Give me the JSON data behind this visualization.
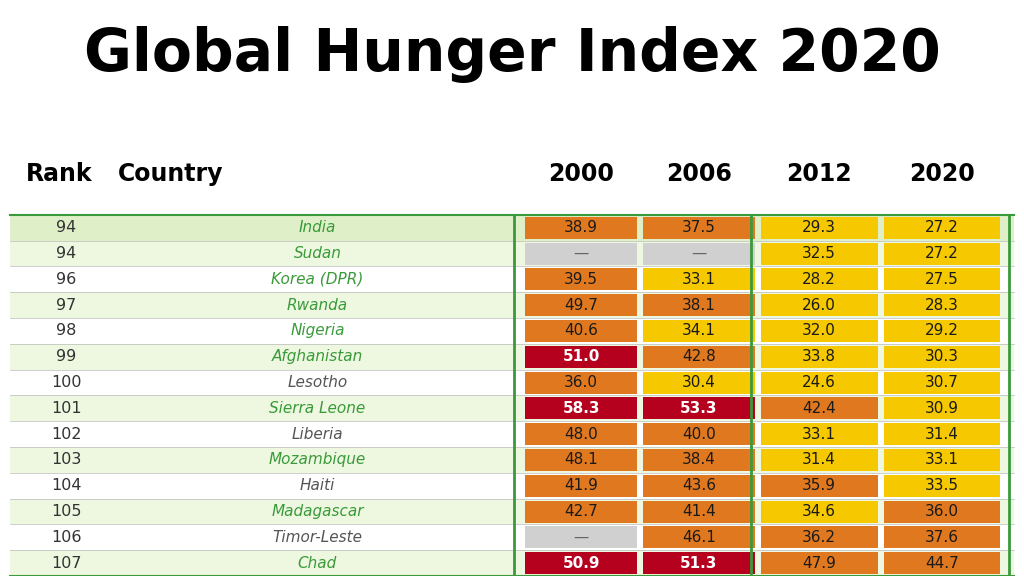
{
  "title": "Global Hunger Index 2020",
  "title_bg_color": "#1e9e1e",
  "title_text_color": "#000000",
  "columns": [
    "Rank",
    "Country",
    "2000",
    "2006",
    "2012",
    "2020"
  ],
  "rows": [
    {
      "rank": "94",
      "country": "India",
      "c2000": 38.9,
      "c2006": 37.5,
      "c2012": 29.3,
      "c2020": 27.2,
      "bg": "#dff0c8",
      "country_color": "#3a9a3a"
    },
    {
      "rank": "94",
      "country": "Sudan",
      "c2000": null,
      "c2006": null,
      "c2012": 32.5,
      "c2020": 27.2,
      "bg": "#eef8e0",
      "country_color": "#3a9a3a"
    },
    {
      "rank": "96",
      "country": "Korea (DPR)",
      "c2000": 39.5,
      "c2006": 33.1,
      "c2012": 28.2,
      "c2020": 27.5,
      "bg": "#ffffff",
      "country_color": "#3a9a3a"
    },
    {
      "rank": "97",
      "country": "Rwanda",
      "c2000": 49.7,
      "c2006": 38.1,
      "c2012": 26.0,
      "c2020": 28.3,
      "bg": "#eef8e0",
      "country_color": "#3a9a3a"
    },
    {
      "rank": "98",
      "country": "Nigeria",
      "c2000": 40.6,
      "c2006": 34.1,
      "c2012": 32.0,
      "c2020": 29.2,
      "bg": "#ffffff",
      "country_color": "#3a9a3a"
    },
    {
      "rank": "99",
      "country": "Afghanistan",
      "c2000": 51.0,
      "c2006": 42.8,
      "c2012": 33.8,
      "c2020": 30.3,
      "bg": "#eef8e0",
      "country_color": "#3a9a3a"
    },
    {
      "rank": "100",
      "country": "Lesotho",
      "c2000": 36.0,
      "c2006": 30.4,
      "c2012": 24.6,
      "c2020": 30.7,
      "bg": "#ffffff",
      "country_color": "#555555"
    },
    {
      "rank": "101",
      "country": "Sierra Leone",
      "c2000": 58.3,
      "c2006": 53.3,
      "c2012": 42.4,
      "c2020": 30.9,
      "bg": "#eef8e0",
      "country_color": "#3a9a3a"
    },
    {
      "rank": "102",
      "country": "Liberia",
      "c2000": 48.0,
      "c2006": 40.0,
      "c2012": 33.1,
      "c2020": 31.4,
      "bg": "#ffffff",
      "country_color": "#555555"
    },
    {
      "rank": "103",
      "country": "Mozambique",
      "c2000": 48.1,
      "c2006": 38.4,
      "c2012": 31.4,
      "c2020": 33.1,
      "bg": "#eef8e0",
      "country_color": "#3a9a3a"
    },
    {
      "rank": "104",
      "country": "Haiti",
      "c2000": 41.9,
      "c2006": 43.6,
      "c2012": 35.9,
      "c2020": 33.5,
      "bg": "#ffffff",
      "country_color": "#555555"
    },
    {
      "rank": "105",
      "country": "Madagascar",
      "c2000": 42.7,
      "c2006": 41.4,
      "c2012": 34.6,
      "c2020": 36.0,
      "bg": "#eef8e0",
      "country_color": "#3a9a3a"
    },
    {
      "rank": "106",
      "country": "Timor-Leste",
      "c2000": null,
      "c2006": 46.1,
      "c2012": 36.2,
      "c2020": 37.6,
      "bg": "#ffffff",
      "country_color": "#555555"
    },
    {
      "rank": "107",
      "country": "Chad",
      "c2000": 50.9,
      "c2006": 51.3,
      "c2012": 47.9,
      "c2020": 44.7,
      "bg": "#eef8e0",
      "country_color": "#3a9a3a"
    }
  ],
  "colors": {
    "dark_red": "#b5001e",
    "orange": "#e07820",
    "yellow": "#f5c800",
    "gray": "#d0d0d0",
    "green_line": "#3a9a3a"
  },
  "thresholds": {
    "dark_red": 50,
    "orange": 35,
    "yellow": 20
  }
}
